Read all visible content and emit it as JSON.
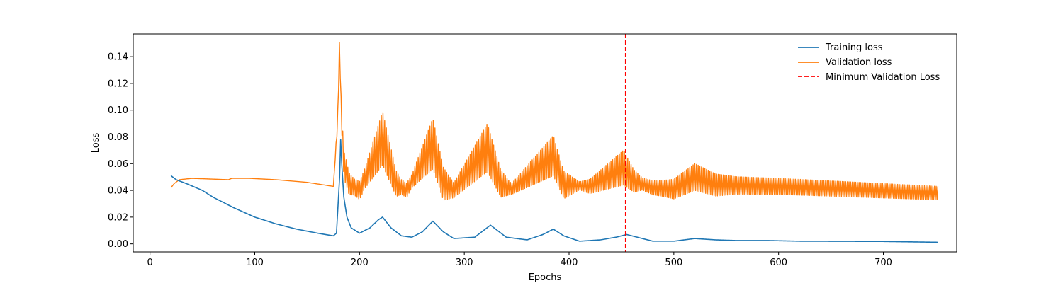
{
  "chart_data": {
    "type": "line",
    "title": "",
    "xlabel": "Epochs",
    "ylabel": "Loss",
    "xlim": [
      -16,
      770
    ],
    "ylim": [
      -0.006,
      0.157
    ],
    "xticks": [
      0,
      100,
      200,
      300,
      400,
      500,
      600,
      700
    ],
    "yticks": [
      0.0,
      0.02,
      0.04,
      0.06,
      0.08,
      0.1,
      0.12,
      0.14
    ],
    "ytick_decimals": 2,
    "grid": false,
    "legend_position": "top-right",
    "series": [
      {
        "name": "Training loss",
        "color": "#1f77b4",
        "points": [
          [
            20,
            0.051
          ],
          [
            25,
            0.048
          ],
          [
            35,
            0.045
          ],
          [
            50,
            0.04
          ],
          [
            60,
            0.035
          ],
          [
            80,
            0.027
          ],
          [
            100,
            0.02
          ],
          [
            120,
            0.015
          ],
          [
            140,
            0.011
          ],
          [
            160,
            0.008
          ],
          [
            175,
            0.006
          ],
          [
            178,
            0.008
          ],
          [
            181,
            0.05
          ],
          [
            182,
            0.078
          ],
          [
            183,
            0.06
          ],
          [
            185,
            0.035
          ],
          [
            188,
            0.02
          ],
          [
            192,
            0.012
          ],
          [
            200,
            0.008
          ],
          [
            210,
            0.012
          ],
          [
            218,
            0.018
          ],
          [
            222,
            0.02
          ],
          [
            230,
            0.012
          ],
          [
            240,
            0.006
          ],
          [
            250,
            0.005
          ],
          [
            260,
            0.009
          ],
          [
            270,
            0.017
          ],
          [
            280,
            0.009
          ],
          [
            290,
            0.004
          ],
          [
            310,
            0.005
          ],
          [
            325,
            0.014
          ],
          [
            340,
            0.005
          ],
          [
            360,
            0.003
          ],
          [
            375,
            0.007
          ],
          [
            385,
            0.011
          ],
          [
            395,
            0.006
          ],
          [
            410,
            0.002
          ],
          [
            430,
            0.003
          ],
          [
            445,
            0.005
          ],
          [
            455,
            0.007
          ],
          [
            465,
            0.005
          ],
          [
            480,
            0.002
          ],
          [
            500,
            0.002
          ],
          [
            520,
            0.004
          ],
          [
            540,
            0.003
          ],
          [
            560,
            0.0025
          ],
          [
            590,
            0.0025
          ],
          [
            620,
            0.002
          ],
          [
            700,
            0.0018
          ],
          [
            752,
            0.0012
          ]
        ]
      },
      {
        "name": "Validation loss",
        "color": "#ff7f0e",
        "points": [
          [
            20,
            0.042
          ],
          [
            23,
            0.045
          ],
          [
            28,
            0.048
          ],
          [
            40,
            0.049
          ],
          [
            75,
            0.048
          ],
          [
            78,
            0.049
          ],
          [
            95,
            0.049
          ],
          [
            120,
            0.048
          ],
          [
            150,
            0.046
          ],
          [
            175,
            0.043
          ],
          [
            179,
            0.09
          ],
          [
            181,
            0.151
          ],
          [
            182.5,
            0.1
          ],
          [
            185,
            0.06
          ],
          [
            190,
            0.045
          ],
          [
            200,
            0.04
          ],
          [
            222,
            0.079
          ],
          [
            235,
            0.045
          ],
          [
            245,
            0.04
          ],
          [
            270,
            0.075
          ],
          [
            280,
            0.045
          ],
          [
            290,
            0.04
          ],
          [
            322,
            0.072
          ],
          [
            335,
            0.045
          ],
          [
            345,
            0.041
          ],
          [
            385,
            0.066
          ],
          [
            395,
            0.044
          ],
          [
            420,
            0.043
          ],
          [
            452,
            0.057
          ],
          [
            462,
            0.047
          ],
          [
            480,
            0.042
          ],
          [
            500,
            0.041
          ],
          [
            520,
            0.05
          ],
          [
            540,
            0.044
          ],
          [
            600,
            0.043
          ],
          [
            752,
            0.038
          ]
        ],
        "oscillation": {
          "start": 176,
          "end": 752,
          "period": 1.6,
          "amplitude_points": [
            [
              176,
              0.0
            ],
            [
              181,
              0.012
            ],
            [
              186,
              0.02
            ],
            [
              195,
              0.012
            ],
            [
              205,
              0.015
            ],
            [
              222,
              0.04
            ],
            [
              240,
              0.011
            ],
            [
              250,
              0.01
            ],
            [
              270,
              0.038
            ],
            [
              290,
              0.011
            ],
            [
              322,
              0.036
            ],
            [
              345,
              0.008
            ],
            [
              385,
              0.03
            ],
            [
              410,
              0.006
            ],
            [
              452,
              0.026
            ],
            [
              470,
              0.009
            ],
            [
              490,
              0.012
            ],
            [
              520,
              0.02
            ],
            [
              560,
              0.013
            ],
            [
              600,
              0.012
            ],
            [
              752,
              0.01
            ]
          ]
        }
      },
      {
        "name": "Minimum Validation Loss",
        "color": "#ff0000",
        "style": "dashed",
        "x_vertical": 454
      }
    ]
  }
}
